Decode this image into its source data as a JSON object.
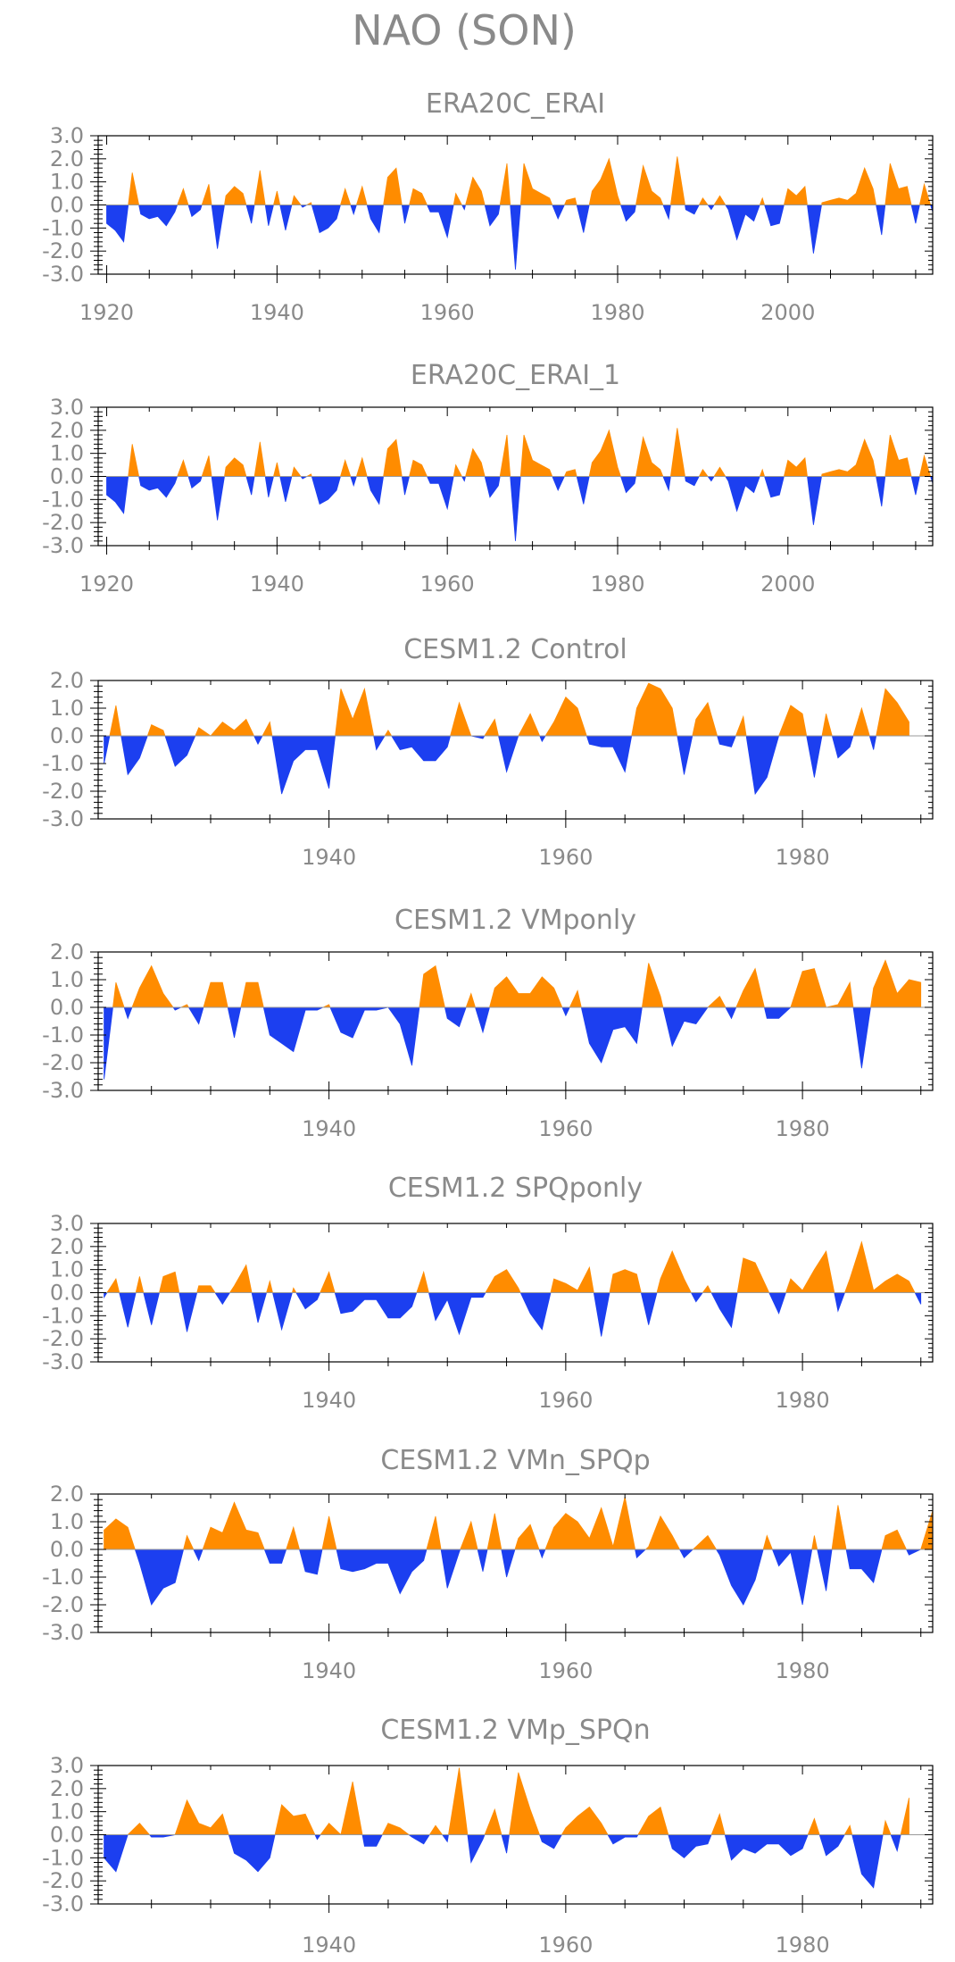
{
  "title": "NAO (SON)",
  "colors": {
    "positive": "#ff8c00",
    "negative": "#1c3ff0",
    "frame": "#000000",
    "text": "#8a8a8a"
  },
  "chart_data": [
    {
      "type": "area",
      "title": "ERA20C_ERAI",
      "x_start": 1920,
      "xlim": [
        1919,
        2017
      ],
      "ylim": [
        -3.0,
        3.0
      ],
      "yticks": [
        "3.0",
        "2.0",
        "1.0",
        "0.0",
        "-1.0",
        "-2.0",
        "-3.0"
      ],
      "xticks": [
        1920,
        1940,
        1960,
        1980,
        2000
      ],
      "values": [
        -0.8,
        -1.1,
        -1.6,
        1.4,
        -0.4,
        -0.6,
        -0.5,
        -0.9,
        -0.3,
        0.7,
        -0.5,
        -0.2,
        0.9,
        -1.9,
        0.4,
        0.8,
        0.5,
        -0.8,
        1.5,
        -0.9,
        0.6,
        -1.1,
        0.4,
        -0.1,
        0.1,
        -1.2,
        -1.0,
        -0.6,
        0.7,
        -0.4,
        0.8,
        -0.6,
        -1.2,
        1.2,
        1.6,
        -0.8,
        0.7,
        0.5,
        -0.3,
        -0.3,
        -1.4,
        0.5,
        -0.2,
        1.2,
        0.6,
        -0.9,
        -0.4,
        1.8,
        -2.8,
        1.8,
        0.7,
        0.5,
        0.3,
        -0.6,
        0.2,
        0.3,
        -1.2,
        0.6,
        1.1,
        2.0,
        0.4,
        -0.7,
        -0.3,
        1.7,
        0.6,
        0.3,
        -0.6,
        2.1,
        -0.2,
        -0.4,
        0.3,
        -0.2,
        0.4,
        -0.2,
        -1.5,
        -0.4,
        -0.7,
        0.3,
        -0.9,
        -0.8,
        0.7,
        0.4,
        0.8,
        -2.1,
        0.1,
        0.2,
        0.3,
        0.2,
        0.5,
        1.6,
        0.7,
        -1.3,
        1.8,
        0.7,
        0.8,
        -0.8,
        0.9,
        -0.3,
        0.7
      ]
    },
    {
      "type": "area",
      "title": "ERA20C_ERAI_1",
      "x_start": 1920,
      "xlim": [
        1919,
        2017
      ],
      "ylim": [
        -3.0,
        3.0
      ],
      "yticks": [
        "3.0",
        "2.0",
        "1.0",
        "0.0",
        "-1.0",
        "-2.0",
        "-3.0"
      ],
      "xticks": [
        1920,
        1940,
        1960,
        1980,
        2000
      ],
      "values": [
        -0.8,
        -1.1,
        -1.6,
        1.4,
        -0.4,
        -0.6,
        -0.5,
        -0.9,
        -0.3,
        0.7,
        -0.5,
        -0.2,
        0.9,
        -1.9,
        0.4,
        0.8,
        0.5,
        -0.8,
        1.5,
        -0.9,
        0.6,
        -1.1,
        0.4,
        -0.1,
        0.1,
        -1.2,
        -1.0,
        -0.6,
        0.7,
        -0.4,
        0.8,
        -0.6,
        -1.2,
        1.2,
        1.6,
        -0.8,
        0.7,
        0.5,
        -0.3,
        -0.3,
        -1.4,
        0.5,
        -0.2,
        1.2,
        0.6,
        -0.9,
        -0.4,
        1.8,
        -2.8,
        1.8,
        0.7,
        0.5,
        0.3,
        -0.6,
        0.2,
        0.3,
        -1.2,
        0.6,
        1.1,
        2.0,
        0.4,
        -0.7,
        -0.3,
        1.7,
        0.6,
        0.3,
        -0.6,
        2.1,
        -0.2,
        -0.4,
        0.3,
        -0.2,
        0.4,
        -0.2,
        -1.5,
        -0.4,
        -0.7,
        0.3,
        -0.9,
        -0.8,
        0.7,
        0.4,
        0.8,
        -2.1,
        0.1,
        0.2,
        0.3,
        0.2,
        0.5,
        1.6,
        0.7,
        -1.3,
        1.8,
        0.7,
        0.8,
        -0.8,
        0.9,
        -0.3,
        0.7
      ]
    },
    {
      "type": "area",
      "title": "CESM1.2 Control",
      "x_start": 1921,
      "xlim": [
        1920.5,
        1991
      ],
      "ylim": [
        -3.0,
        2.0
      ],
      "yticks": [
        "2.0",
        "1.0",
        "0.0",
        "-1.0",
        "-2.0",
        "-3.0"
      ],
      "xticks": [
        1940,
        1960,
        1980
      ],
      "values": [
        -1.0,
        1.1,
        -1.4,
        -0.8,
        0.4,
        0.2,
        -1.1,
        -0.7,
        0.3,
        0.0,
        0.5,
        0.2,
        0.6,
        -0.3,
        0.5,
        -2.1,
        -0.9,
        -0.5,
        -0.5,
        -1.9,
        1.7,
        0.6,
        1.7,
        -0.5,
        0.2,
        -0.5,
        -0.4,
        -0.9,
        -0.9,
        -0.4,
        1.2,
        0.0,
        -0.1,
        0.6,
        -1.3,
        0.0,
        0.8,
        -0.2,
        0.5,
        1.4,
        1.0,
        -0.3,
        -0.4,
        -0.4,
        -1.3,
        1.0,
        1.9,
        1.7,
        1.0,
        -1.4,
        0.6,
        1.2,
        -0.3,
        -0.4,
        0.7,
        -2.1,
        -1.5,
        0.0,
        1.1,
        0.8,
        -1.5,
        0.8,
        -0.8,
        -0.4,
        1.0,
        -0.5,
        1.7,
        1.2,
        0.5
      ]
    },
    {
      "type": "area",
      "title": "CESM1.2 VMponly",
      "x_start": 1921,
      "xlim": [
        1920.5,
        1991
      ],
      "ylim": [
        -3.0,
        2.0
      ],
      "yticks": [
        "2.0",
        "1.0",
        "0.0",
        "-1.0",
        "-2.0",
        "-3.0"
      ],
      "xticks": [
        1940,
        1960,
        1980
      ],
      "values": [
        -2.6,
        0.9,
        -0.4,
        0.7,
        1.5,
        0.5,
        -0.1,
        0.1,
        -0.6,
        0.9,
        0.9,
        -1.1,
        0.9,
        0.9,
        -1.0,
        -1.3,
        -1.6,
        -0.1,
        -0.1,
        0.1,
        -0.9,
        -1.1,
        -0.1,
        -0.1,
        0.0,
        -0.6,
        -2.1,
        1.2,
        1.5,
        -0.4,
        -0.7,
        0.5,
        -0.9,
        0.7,
        1.1,
        0.5,
        0.5,
        1.1,
        0.7,
        -0.3,
        0.6,
        -1.3,
        -2.0,
        -0.8,
        -0.7,
        -1.3,
        1.6,
        0.4,
        -1.4,
        -0.5,
        -0.6,
        0.0,
        0.4,
        -0.4,
        0.6,
        1.4,
        -0.4,
        -0.4,
        0.0,
        1.3,
        1.4,
        0.0,
        0.1,
        0.9,
        -2.2,
        0.7,
        1.7,
        0.5,
        1.0,
        0.9
      ]
    },
    {
      "type": "area",
      "title": "CESM1.2 SPQponly",
      "x_start": 1921,
      "xlim": [
        1920.5,
        1991
      ],
      "ylim": [
        -3.0,
        3.0
      ],
      "yticks": [
        "3.0",
        "2.0",
        "1.0",
        "0.0",
        "-1.0",
        "-2.0",
        "-3.0"
      ],
      "xticks": [
        1940,
        1960,
        1980
      ],
      "values": [
        -0.2,
        0.6,
        -1.5,
        0.7,
        -1.4,
        0.7,
        0.9,
        -1.7,
        0.3,
        0.3,
        -0.5,
        0.3,
        1.2,
        -1.3,
        0.5,
        -1.6,
        0.2,
        -0.7,
        -0.3,
        0.9,
        -0.9,
        -0.8,
        -0.3,
        -0.3,
        -1.1,
        -1.1,
        -0.6,
        0.9,
        -1.2,
        -0.3,
        -1.8,
        -0.2,
        -0.2,
        0.7,
        1.0,
        0.2,
        -0.9,
        -1.6,
        0.6,
        0.4,
        0.1,
        1.1,
        -1.9,
        0.8,
        1.0,
        0.8,
        -1.4,
        0.6,
        1.8,
        0.6,
        -0.4,
        0.3,
        -0.7,
        -1.5,
        1.5,
        1.3,
        0.2,
        -0.9,
        0.6,
        0.1,
        1.0,
        1.8,
        -0.8,
        0.6,
        2.2,
        0.1,
        0.5,
        0.8,
        0.5,
        -0.5
      ]
    },
    {
      "type": "area",
      "title": "CESM1.2 VMn_SPQp",
      "x_start": 1921,
      "xlim": [
        1920.5,
        1991
      ],
      "ylim": [
        -3.0,
        2.0
      ],
      "yticks": [
        "2.0",
        "1.0",
        "0.0",
        "-1.0",
        "-2.0",
        "-3.0"
      ],
      "xticks": [
        1940,
        1960,
        1980
      ],
      "values": [
        0.7,
        1.1,
        0.8,
        -0.5,
        -2.0,
        -1.4,
        -1.2,
        0.5,
        -0.4,
        0.8,
        0.6,
        1.7,
        0.7,
        0.6,
        -0.5,
        -0.5,
        0.8,
        -0.8,
        -0.9,
        1.2,
        -0.7,
        -0.8,
        -0.7,
        -0.5,
        -0.5,
        -1.6,
        -0.8,
        -0.4,
        1.2,
        -1.4,
        -0.1,
        1.0,
        -0.8,
        1.3,
        -1.0,
        0.4,
        0.9,
        -0.3,
        0.8,
        1.3,
        1.0,
        0.4,
        1.5,
        0.1,
        1.9,
        -0.3,
        0.1,
        1.2,
        0.5,
        -0.3,
        0.1,
        0.5,
        -0.2,
        -1.3,
        -2.0,
        -1.1,
        0.5,
        -0.6,
        -0.1,
        -2.0,
        0.5,
        -1.5,
        1.6,
        -0.7,
        -0.7,
        -1.2,
        0.5,
        0.7,
        -0.2,
        0.0,
        1.4
      ]
    },
    {
      "type": "area",
      "title": "CESM1.2 VMp_SPQn",
      "x_start": 1921,
      "xlim": [
        1920.5,
        1991
      ],
      "ylim": [
        -3.0,
        3.0
      ],
      "yticks": [
        "3.0",
        "2.0",
        "1.0",
        "0.0",
        "-1.0",
        "-2.0",
        "-3.0"
      ],
      "xticks": [
        1940,
        1960,
        1980
      ],
      "values": [
        -1.0,
        -1.6,
        0.0,
        0.5,
        -0.1,
        -0.1,
        0.0,
        1.5,
        0.5,
        0.3,
        0.9,
        -0.8,
        -1.1,
        -1.6,
        -1.0,
        1.3,
        0.8,
        0.9,
        -0.2,
        0.5,
        0.0,
        2.3,
        -0.5,
        -0.5,
        0.5,
        0.3,
        -0.1,
        -0.4,
        0.4,
        -0.3,
        2.9,
        -1.2,
        -0.2,
        1.1,
        -0.8,
        2.7,
        1.1,
        -0.3,
        -0.6,
        0.3,
        0.8,
        1.2,
        0.5,
        -0.4,
        -0.1,
        -0.1,
        0.8,
        1.2,
        -0.6,
        -1.0,
        -0.5,
        -0.4,
        0.9,
        -1.1,
        -0.6,
        -0.8,
        -0.4,
        -0.4,
        -0.9,
        -0.6,
        0.7,
        -0.9,
        -0.5,
        0.4,
        -1.7,
        -2.3,
        0.6,
        -0.7,
        1.6
      ]
    }
  ]
}
